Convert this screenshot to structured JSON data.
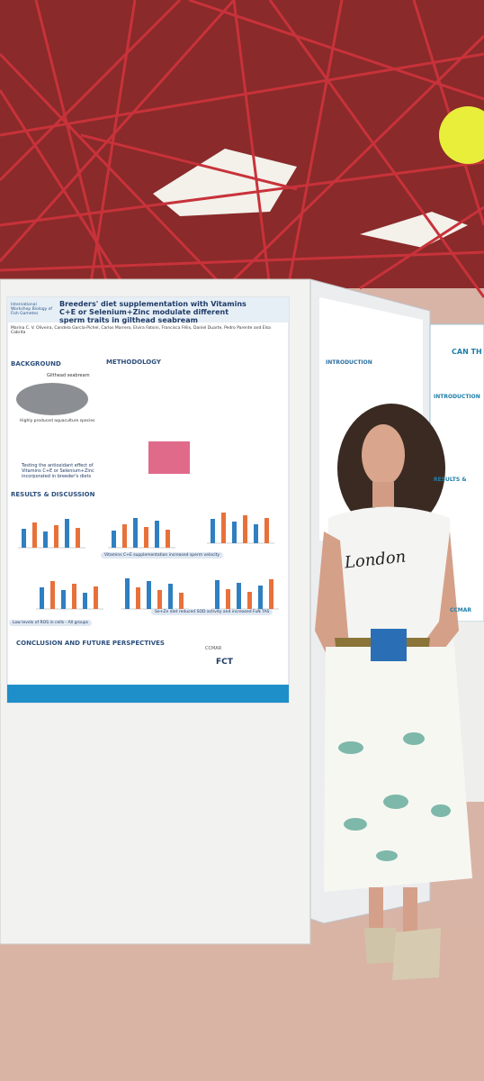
{
  "poster_left": {
    "workshop": "International Workshop Biology of Fish Gametes",
    "title": "Breeders' diet supplementation with Vitamins C+E or Selenium+Zinc modulate different sperm traits in gilthead seabream",
    "authors": "Marina C. V. Oliveira, Candela García-Pichel, Carlos Marrero, Elvira Fatsini, Francisca Félix, Daniel Duarte, Pedro Parente and Elsa Cabrita",
    "sections": [
      "Background",
      "Methodology",
      "Results & discussion",
      "Conclusion and future perspectives"
    ],
    "labels": [
      "Gilthead seabream",
      "Highly produced aquaculture species",
      "Testing the antioxidant effect of Vitamins C+E or Selenium+Zinc incorporated in breeder's diets",
      "Vitamins C+E supplementation increased sperm velocity",
      "Se+Zn diet reduced SOD activity and increased FuN TAS",
      "Low levels of ROS in cells - All groups"
    ],
    "logos": [
      "FCT",
      "CCMAR"
    ]
  },
  "poster_middle": {
    "sections": [
      "Introduction"
    ]
  },
  "poster_right": {
    "title": "CAN TH",
    "sections": [
      "Introduction",
      "Results &"
    ],
    "logo": "CCMAR"
  },
  "shirt": "London"
}
